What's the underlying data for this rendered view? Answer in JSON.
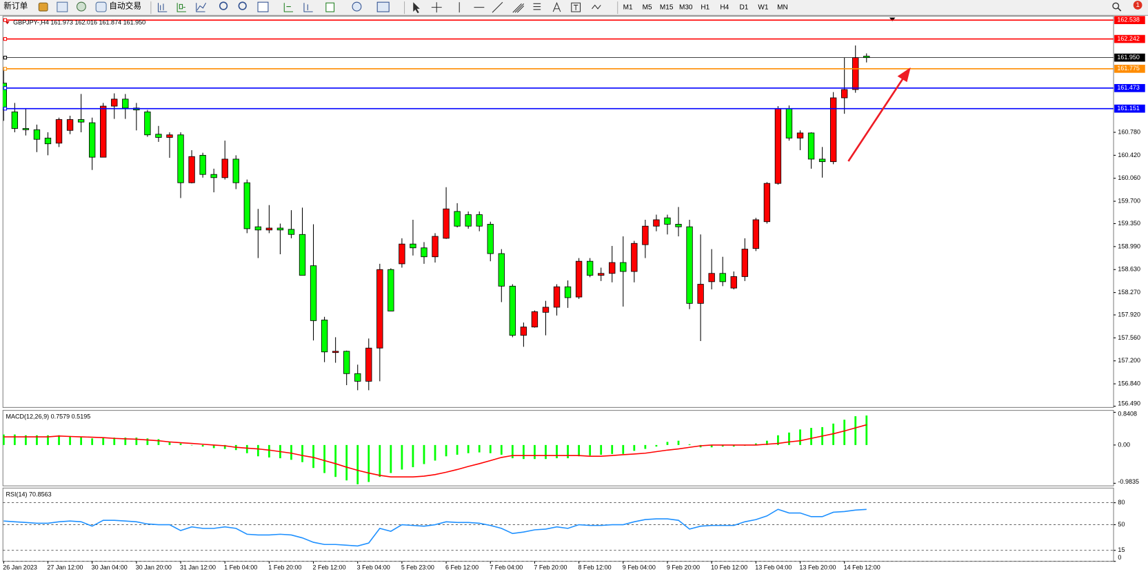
{
  "toolbar": {
    "new_order": "新订单",
    "auto_trading": "自动交易",
    "timeframes": [
      "M1",
      "M5",
      "M15",
      "M30",
      "H1",
      "H4",
      "D1",
      "W1",
      "MN"
    ],
    "notifications": 1
  },
  "chart_data": [
    {
      "type": "candlestick",
      "title": "GBPJPY-,H4  161.973 162.016 161.874 161.950",
      "up_color": "#ff0000",
      "down_color": "#00ff00",
      "categories": [
        "26 Jan 2023",
        null,
        null,
        null,
        "27 Jan 12:00",
        null,
        null,
        null,
        "30 Jan 04:00",
        null,
        null,
        null,
        "30 Jan 20:00",
        null,
        null,
        null,
        "31 Jan 12:00",
        null,
        null,
        null,
        "1 Feb 04:00",
        null,
        null,
        null,
        "1 Feb 20:00",
        null,
        null,
        null,
        "2 Feb 12:00",
        null,
        null,
        null,
        "3 Feb 04:00",
        null,
        null,
        null,
        "5 Feb 23:00",
        null,
        null,
        null,
        "6 Feb 12:00",
        null,
        null,
        null,
        "7 Feb 04:00",
        null,
        null,
        null,
        "7 Feb 20:00",
        null,
        null,
        null,
        "8 Feb 12:00",
        null,
        null,
        null,
        "9 Feb 04:00",
        null,
        null,
        null,
        "9 Feb 20:00",
        null,
        null,
        null,
        "10 Feb 12:00",
        null,
        null,
        null,
        "13 Feb 04:00",
        null,
        null,
        null,
        "13 Feb 20:00",
        null,
        null,
        null,
        "14 Feb 12:00",
        null,
        null
      ],
      "open": [
        161.55,
        161.1,
        160.84,
        160.82,
        160.69,
        160.61,
        160.81,
        160.98,
        160.93,
        160.39,
        161.19,
        161.3,
        161.16,
        161.1,
        160.75,
        160.7,
        160.74,
        159.99,
        160.42,
        160.12,
        160.07,
        160.36,
        159.99,
        159.3,
        159.25,
        159.28,
        159.26,
        159.18,
        158.69,
        157.84,
        157.33,
        157.35,
        157.0,
        156.88,
        157.4,
        158.63,
        158.72,
        159.03,
        158.97,
        158.83,
        159.12,
        159.54,
        159.49,
        159.49,
        159.34,
        158.88,
        158.37,
        157.6,
        157.73,
        157.96,
        158.04,
        158.36,
        158.2,
        158.76,
        158.54,
        158.57,
        158.74,
        158.6,
        159.02,
        159.31,
        159.44,
        159.34,
        159.3,
        158.1,
        158.44,
        158.57,
        158.34,
        158.52,
        158.96,
        159.38,
        159.98,
        161.15,
        160.69,
        160.77,
        160.36,
        160.32,
        161.32,
        161.45,
        161.973
      ],
      "high": [
        161.76,
        161.24,
        161.15,
        160.9,
        160.78,
        161.01,
        161.04,
        161.38,
        161.01,
        161.24,
        161.39,
        161.38,
        161.24,
        161.13,
        160.88,
        160.78,
        160.78,
        160.5,
        160.46,
        160.21,
        160.65,
        160.42,
        160.04,
        159.58,
        159.64,
        159.35,
        159.56,
        159.6,
        159.34,
        157.89,
        157.57,
        157.36,
        157.14,
        157.55,
        158.72,
        158.65,
        159.12,
        159.41,
        159.06,
        159.2,
        159.92,
        159.67,
        159.54,
        159.54,
        159.38,
        158.95,
        158.4,
        157.8,
        157.99,
        158.14,
        158.4,
        158.46,
        158.81,
        158.81,
        158.66,
        159.0,
        159.15,
        159.08,
        159.41,
        159.49,
        159.49,
        159.61,
        159.41,
        159.18,
        158.95,
        158.83,
        158.6,
        159.12,
        159.44,
        160.0,
        161.19,
        161.2,
        160.81,
        160.78,
        160.55,
        161.41,
        161.95,
        162.14,
        162.016
      ],
      "low": [
        160.96,
        160.78,
        160.73,
        160.47,
        160.42,
        160.55,
        160.75,
        160.78,
        160.19,
        160.39,
        160.99,
        160.99,
        160.81,
        160.71,
        160.63,
        160.38,
        159.75,
        159.98,
        160.07,
        159.84,
        160.04,
        159.89,
        159.2,
        158.81,
        159.2,
        158.87,
        159.12,
        158.54,
        157.52,
        157.18,
        157.17,
        156.82,
        156.74,
        156.74,
        156.88,
        157.98,
        158.66,
        158.85,
        158.72,
        158.74,
        159.11,
        159.29,
        159.27,
        159.23,
        158.76,
        158.12,
        157.57,
        157.42,
        157.72,
        157.6,
        157.91,
        158.03,
        158.17,
        158.51,
        158.45,
        158.43,
        158.05,
        158.43,
        158.81,
        159.23,
        159.18,
        159.15,
        158.01,
        157.51,
        158.32,
        158.37,
        158.32,
        158.45,
        158.92,
        159.35,
        159.96,
        160.65,
        160.5,
        160.21,
        160.07,
        160.28,
        161.07,
        161.4,
        161.874
      ],
      "close": [
        161.13,
        160.84,
        160.82,
        160.67,
        160.6,
        160.98,
        160.98,
        160.94,
        160.39,
        161.19,
        161.3,
        161.16,
        161.13,
        160.74,
        160.7,
        160.74,
        159.99,
        160.4,
        160.12,
        160.07,
        160.36,
        159.99,
        159.27,
        159.25,
        159.28,
        159.25,
        159.18,
        158.54,
        157.83,
        157.34,
        157.35,
        157.0,
        156.88,
        157.4,
        158.63,
        157.98,
        159.03,
        158.97,
        158.83,
        159.15,
        159.58,
        159.31,
        159.31,
        159.31,
        158.88,
        158.37,
        157.6,
        157.73,
        157.97,
        158.04,
        158.36,
        158.19,
        158.76,
        158.54,
        158.57,
        158.74,
        158.6,
        159.04,
        159.31,
        159.41,
        159.34,
        159.3,
        158.1,
        158.4,
        158.57,
        158.44,
        158.52,
        158.95,
        159.41,
        159.98,
        161.15,
        160.69,
        160.77,
        160.36,
        160.32,
        161.32,
        161.45,
        161.95,
        161.95
      ],
      "ylim": [
        156.47,
        162.6
      ],
      "yticks": [
        {
          "value": 160.78,
          "label": "160.780"
        },
        {
          "value": 160.42,
          "label": "160.420"
        },
        {
          "value": 160.06,
          "label": "160.060"
        },
        {
          "value": 159.7,
          "label": "159.700"
        },
        {
          "value": 159.35,
          "label": "159.350"
        },
        {
          "value": 158.99,
          "label": "158.990"
        },
        {
          "value": 158.63,
          "label": "158.630"
        },
        {
          "value": 158.27,
          "label": "158.270"
        },
        {
          "value": 157.92,
          "label": "157.920"
        },
        {
          "value": 157.56,
          "label": "157.560"
        },
        {
          "value": 157.2,
          "label": "157.200"
        },
        {
          "value": 156.84,
          "label": "156.840"
        },
        {
          "value": 156.49,
          "label": "156.490"
        }
      ],
      "levels": [
        {
          "value": 162.538,
          "color": "#ff0000"
        },
        {
          "value": 162.242,
          "color": "#ff0000"
        },
        {
          "value": 161.95,
          "label": "161.950",
          "color": "#000000"
        },
        {
          "value": 161.775,
          "color": "#ff8c00"
        },
        {
          "value": 161.473,
          "color": "#0000ff"
        },
        {
          "value": 161.151,
          "color": "#0000ff"
        }
      ]
    },
    {
      "type": "combo",
      "title": "MACD(12,26,9) 0.7579 0.5195",
      "series": [
        {
          "style": "bar",
          "color": "#00ff00",
          "values": [
            0.27,
            0.27,
            0.25,
            0.25,
            0.25,
            0.25,
            0.23,
            0.21,
            0.17,
            0.19,
            0.19,
            0.19,
            0.19,
            0.17,
            0.15,
            0.08,
            0.04,
            0,
            -0.04,
            -0.08,
            -0.1,
            -0.13,
            -0.21,
            -0.29,
            -0.32,
            -0.34,
            -0.38,
            -0.44,
            -0.59,
            -0.72,
            -0.82,
            -0.91,
            -1.01,
            -0.95,
            -0.82,
            -0.72,
            -0.63,
            -0.57,
            -0.49,
            -0.4,
            -0.29,
            -0.25,
            -0.21,
            -0.19,
            -0.21,
            -0.25,
            -0.34,
            -0.36,
            -0.36,
            -0.36,
            -0.34,
            -0.34,
            -0.29,
            -0.27,
            -0.25,
            -0.23,
            -0.23,
            -0.15,
            -0.1,
            -0.04,
            0.08,
            0.11,
            0.02,
            -0.06,
            -0.06,
            -0.04,
            -0.04,
            -0.02,
            0.04,
            0.11,
            0.25,
            0.32,
            0.4,
            0.44,
            0.46,
            0.55,
            0.65,
            0.74,
            0.7579
          ]
        },
        {
          "style": "line",
          "color": "#ff0000",
          "values": [
            0.21,
            0.21,
            0.21,
            0.21,
            0.21,
            0.23,
            0.22,
            0.21,
            0.2,
            0.19,
            0.17,
            0.16,
            0.15,
            0.13,
            0.11,
            0.08,
            0.06,
            0.04,
            0.02,
            0,
            -0.02,
            -0.06,
            -0.08,
            -0.1,
            -0.13,
            -0.17,
            -0.21,
            -0.27,
            -0.32,
            -0.4,
            -0.48,
            -0.57,
            -0.65,
            -0.72,
            -0.78,
            -0.82,
            -0.82,
            -0.82,
            -0.8,
            -0.76,
            -0.7,
            -0.63,
            -0.55,
            -0.48,
            -0.4,
            -0.32,
            -0.27,
            -0.27,
            -0.27,
            -0.27,
            -0.27,
            -0.27,
            -0.27,
            -0.29,
            -0.29,
            -0.27,
            -0.25,
            -0.23,
            -0.21,
            -0.17,
            -0.13,
            -0.1,
            -0.06,
            -0.02,
            0,
            0,
            0,
            0,
            0,
            0.02,
            0.04,
            0.08,
            0.11,
            0.17,
            0.23,
            0.29,
            0.36,
            0.44,
            0.5195
          ]
        }
      ],
      "ylim": [
        -1.05,
        0.89
      ],
      "yticks": [
        0.8408,
        {
          "value": 0,
          "label": "0.00"
        },
        -0.9835
      ]
    },
    {
      "type": "line",
      "title": "RSI(14) 70.8563",
      "color": "#1e90ff",
      "grid": "dashed",
      "values": [
        55,
        54,
        53,
        52,
        52,
        54,
        55,
        54,
        48,
        56,
        56,
        55,
        54,
        51,
        50,
        50,
        42,
        47,
        45,
        45,
        47,
        45,
        37,
        36,
        36,
        37,
        36,
        32,
        26,
        23,
        23,
        22,
        21,
        25,
        45,
        41,
        50,
        49,
        48,
        50,
        54,
        53,
        53,
        52,
        49,
        45,
        38,
        40,
        43,
        44,
        47,
        45,
        50,
        49,
        49,
        50,
        50,
        54,
        57,
        58,
        58,
        56,
        44,
        48,
        49,
        49,
        49,
        54,
        57,
        62,
        71,
        66,
        66,
        61,
        61,
        67,
        68,
        70,
        70.8563
      ],
      "ylim": [
        0,
        100
      ],
      "yticks": [
        80,
        50,
        15,
        0
      ]
    }
  ]
}
